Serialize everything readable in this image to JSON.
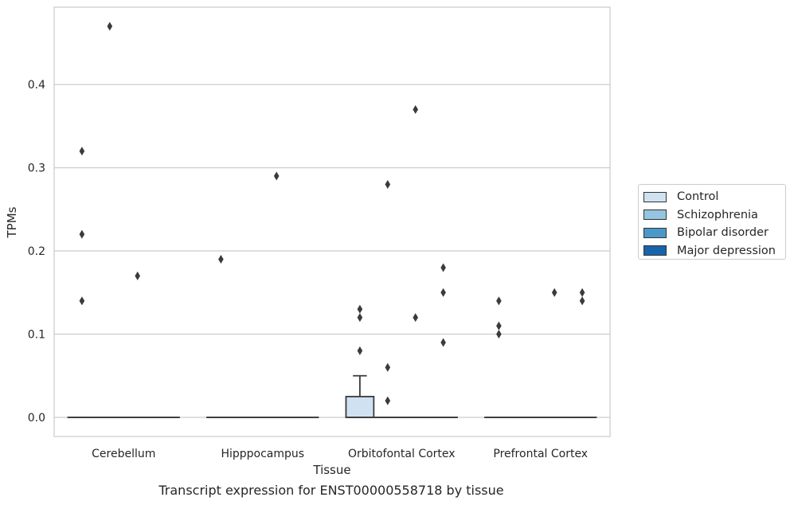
{
  "chart_data": {
    "type": "box",
    "title": "Transcript expression for ENST00000558718 by tissue",
    "xlabel": "Tissue",
    "ylabel": "TPMs",
    "ylim": [
      -0.023,
      0.493
    ],
    "yticks": [
      0.0,
      0.1,
      0.2,
      0.3,
      0.4
    ],
    "ytick_labels": [
      "0.0",
      "0.1",
      "0.2",
      "0.3",
      "0.4"
    ],
    "grid": true,
    "legend_position": "right",
    "categories": [
      "Cerebellum",
      "Hipppocampus",
      "Orbitofontal Cortex",
      "Prefrontal Cortex"
    ],
    "series": [
      {
        "name": "Control",
        "color": "#d0e1f2",
        "boxes": [
          {
            "q1": 0,
            "median": 0,
            "q3": 0,
            "whisker_low": 0,
            "whisker_high": 0,
            "outliers": [
              0.14,
              0.32,
              0.22
            ]
          },
          {
            "q1": 0,
            "median": 0,
            "q3": 0,
            "whisker_low": 0,
            "whisker_high": 0,
            "outliers": [
              0.19
            ]
          },
          {
            "q1": 0,
            "median": 0,
            "q3": 0.025,
            "whisker_low": 0,
            "whisker_high": 0.05,
            "outliers": [
              0.08,
              0.12,
              0.13
            ]
          },
          {
            "q1": 0,
            "median": 0,
            "q3": 0,
            "whisker_low": 0,
            "whisker_high": 0,
            "outliers": [
              0.1,
              0.11,
              0.14
            ]
          }
        ]
      },
      {
        "name": "Schizophrenia",
        "color": "#94c4df",
        "boxes": [
          {
            "q1": 0,
            "median": 0,
            "q3": 0,
            "whisker_low": 0,
            "whisker_high": 0,
            "outliers": [
              0.47
            ]
          },
          {
            "q1": 0,
            "median": 0,
            "q3": 0,
            "whisker_low": 0,
            "whisker_high": 0,
            "outliers": []
          },
          {
            "q1": 0,
            "median": 0,
            "q3": 0,
            "whisker_low": 0,
            "whisker_high": 0,
            "outliers": [
              0.02,
              0.06,
              0.28
            ]
          },
          {
            "q1": 0,
            "median": 0,
            "q3": 0,
            "whisker_low": 0,
            "whisker_high": 0,
            "outliers": []
          }
        ]
      },
      {
        "name": "Bipolar disorder",
        "color": "#4a98c9",
        "boxes": [
          {
            "q1": 0,
            "median": 0,
            "q3": 0,
            "whisker_low": 0,
            "whisker_high": 0,
            "outliers": [
              0.17
            ]
          },
          {
            "q1": 0,
            "median": 0,
            "q3": 0,
            "whisker_low": 0,
            "whisker_high": 0,
            "outliers": [
              0.29
            ]
          },
          {
            "q1": 0,
            "median": 0,
            "q3": 0,
            "whisker_low": 0,
            "whisker_high": 0,
            "outliers": [
              0.37,
              0.12
            ]
          },
          {
            "q1": 0,
            "median": 0,
            "q3": 0,
            "whisker_low": 0,
            "whisker_high": 0,
            "outliers": [
              0.15
            ]
          }
        ]
      },
      {
        "name": "Major depression",
        "color": "#1764ab",
        "boxes": [
          {
            "q1": 0,
            "median": 0,
            "q3": 0,
            "whisker_low": 0,
            "whisker_high": 0,
            "outliers": []
          },
          {
            "q1": 0,
            "median": 0,
            "q3": 0,
            "whisker_low": 0,
            "whisker_high": 0,
            "outliers": []
          },
          {
            "q1": 0,
            "median": 0,
            "q3": 0,
            "whisker_low": 0,
            "whisker_high": 0,
            "outliers": [
              0.18,
              0.15,
              0.09
            ]
          },
          {
            "q1": 0,
            "median": 0,
            "q3": 0,
            "whisker_low": 0,
            "whisker_high": 0,
            "outliers": [
              0.14,
              0.15
            ]
          }
        ]
      }
    ]
  }
}
